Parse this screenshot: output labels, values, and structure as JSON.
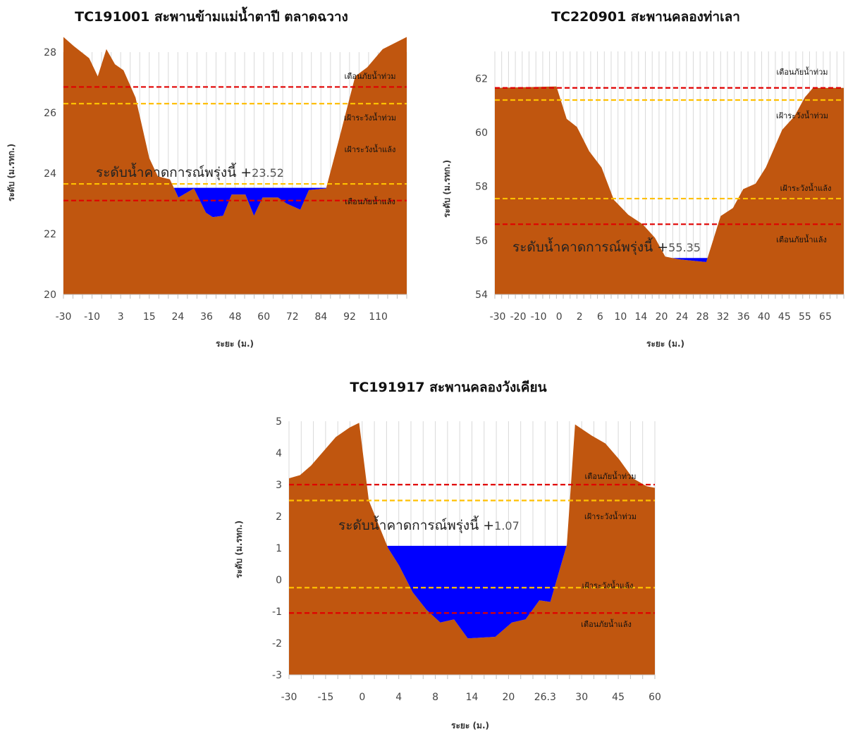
{
  "colors": {
    "ground": "#c0560f",
    "water": "#0000ff",
    "warning_red": "#e00000",
    "watch_yellow": "#ffc000",
    "grid": "#d9d9d9"
  },
  "line_labels": {
    "flood_warning": "เตือนภัยน้ำท่วม",
    "flood_watch": "เฝ้าระวังน้ำท่วม",
    "drought_watch": "เฝ้าระวังน้ำแล้ง",
    "drought_warning": "เตือนภัยน้ำแล้ง"
  },
  "chart_data": [
    {
      "type": "area",
      "title": "TC191001 สะพานข้ามแม่น้ำตาปี ตลาดฉวาง",
      "xlabel": "ระยะ (ม.)",
      "ylabel": "ระดับ (ม.รทก.)",
      "ylim": [
        20,
        28
      ],
      "yticks": [
        "20",
        "22",
        "24",
        "26",
        "28"
      ],
      "xtick_labels": [
        "-30",
        "-10",
        "3",
        "15",
        "24",
        "36",
        "48",
        "60",
        "72",
        "84",
        "92",
        "110"
      ],
      "forecast_label": "ระดับน้ำคาดการณ์พรุ่งนี้ +",
      "forecast_value": "23.52",
      "water_level": 23.52,
      "thresholds": {
        "flood_warning": 26.85,
        "flood_watch": 26.3,
        "drought_watch": 23.65,
        "drought_warning": 23.1
      },
      "labels_shown": [
        "flood_warning",
        "flood_watch",
        "drought_watch",
        "drought_warning"
      ],
      "ground_profile": [
        [
          0,
          28.5
        ],
        [
          0.6,
          28.2
        ],
        [
          1.5,
          27.8
        ],
        [
          2.0,
          27.2
        ],
        [
          2.5,
          28.1
        ],
        [
          3.0,
          27.6
        ],
        [
          3.5,
          27.4
        ],
        [
          4.2,
          26.5
        ],
        [
          5.0,
          24.5
        ],
        [
          5.5,
          23.9
        ],
        [
          6.2,
          23.8
        ],
        [
          6.7,
          23.2
        ],
        [
          7.6,
          23.5
        ],
        [
          8.3,
          22.7
        ],
        [
          8.7,
          22.55
        ],
        [
          9.3,
          22.6
        ],
        [
          9.8,
          23.3
        ],
        [
          10.6,
          23.3
        ],
        [
          11.1,
          22.6
        ],
        [
          11.6,
          23.2
        ],
        [
          12.5,
          23.2
        ],
        [
          13.0,
          23.0
        ],
        [
          13.8,
          22.8
        ],
        [
          14.3,
          23.45
        ],
        [
          15.3,
          23.5
        ],
        [
          16.0,
          25.0
        ],
        [
          17.0,
          27.2
        ],
        [
          17.7,
          27.5
        ],
        [
          18.6,
          28.1
        ],
        [
          20,
          28.5
        ]
      ]
    },
    {
      "type": "area",
      "title": "TC220901 สะพานคลองท่าเลา",
      "xlabel": "ระยะ (ม.)",
      "ylabel": "ระดับ (ม.รทก.)",
      "ylim": [
        54,
        63
      ],
      "yticks": [
        "54",
        "56",
        "58",
        "60",
        "62"
      ],
      "xtick_labels": [
        "-30",
        "-20",
        "-10",
        "0",
        "2",
        "6",
        "10",
        "14",
        "20",
        "24",
        "28",
        "32",
        "36",
        "40",
        "45",
        "55",
        "65"
      ],
      "forecast_label": "ระดับน้ำคาดการณ์พรุ่งนี้ +",
      "forecast_value": "55.35",
      "water_level": 55.35,
      "thresholds": {
        "flood_warning": 61.65,
        "flood_watch": 61.2,
        "drought_watch": 57.55,
        "drought_warning": 56.6
      },
      "labels_shown": [
        "flood_warning",
        "flood_watch",
        "drought_watch",
        "drought_warning"
      ],
      "ground_profile": [
        [
          0,
          61.65
        ],
        [
          3.0,
          61.7
        ],
        [
          3.5,
          60.5
        ],
        [
          4.0,
          60.2
        ],
        [
          4.6,
          59.3
        ],
        [
          5.2,
          58.7
        ],
        [
          5.8,
          57.5
        ],
        [
          6.5,
          56.95
        ],
        [
          7.2,
          56.6
        ],
        [
          7.8,
          56.1
        ],
        [
          8.3,
          55.4
        ],
        [
          9.0,
          55.3
        ],
        [
          10.3,
          55.2
        ],
        [
          11.0,
          56.9
        ],
        [
          11.6,
          57.2
        ],
        [
          12.1,
          57.9
        ],
        [
          12.7,
          58.1
        ],
        [
          13.2,
          58.7
        ],
        [
          14.0,
          60.1
        ],
        [
          14.6,
          60.6
        ],
        [
          15.1,
          61.3
        ],
        [
          15.5,
          61.65
        ],
        [
          17,
          61.65
        ]
      ]
    },
    {
      "type": "area",
      "title": "TC191917 สะพานคลองวังเคียน",
      "xlabel": "ระยะ (ม.)",
      "ylabel": "ระดับ (ม.รทก.)",
      "ylim": [
        -3,
        5
      ],
      "yticks": [
        "-3",
        "-2",
        "-1",
        "0",
        "1",
        "2",
        "3",
        "4",
        "5"
      ],
      "xtick_labels": [
        "-30",
        "-15",
        "0",
        "4",
        "8",
        "14",
        "20",
        "26.3",
        "30",
        "45",
        "60"
      ],
      "forecast_label": "ระดับน้ำคาดการณ์พรุ่งนี้ +",
      "forecast_value": "1.07",
      "water_level": 1.07,
      "thresholds": {
        "flood_warning": 3.0,
        "flood_watch": 2.5,
        "drought_watch": -0.25,
        "drought_warning": -1.05
      },
      "labels_shown": [
        "flood_warning",
        "flood_watch",
        "drought_watch",
        "drought_warning"
      ],
      "ground_profile": [
        [
          0,
          3.2
        ],
        [
          0.4,
          3.3
        ],
        [
          0.8,
          3.6
        ],
        [
          1.3,
          4.1
        ],
        [
          1.7,
          4.5
        ],
        [
          2.2,
          4.8
        ],
        [
          2.55,
          4.95
        ],
        [
          2.9,
          2.5
        ],
        [
          3.6,
          1.0
        ],
        [
          4.0,
          0.45
        ],
        [
          4.5,
          -0.4
        ],
        [
          5.0,
          -0.95
        ],
        [
          5.5,
          -1.35
        ],
        [
          6.0,
          -1.25
        ],
        [
          6.5,
          -1.85
        ],
        [
          7.5,
          -1.8
        ],
        [
          8.1,
          -1.35
        ],
        [
          8.6,
          -1.25
        ],
        [
          9.1,
          -0.65
        ],
        [
          9.5,
          -0.7
        ],
        [
          10.1,
          1.1
        ],
        [
          10.4,
          4.9
        ],
        [
          11.0,
          4.55
        ],
        [
          11.5,
          4.3
        ],
        [
          12.0,
          3.8
        ],
        [
          12.5,
          3.2
        ],
        [
          13.0,
          2.95
        ],
        [
          13.3,
          2.9
        ]
      ]
    }
  ]
}
